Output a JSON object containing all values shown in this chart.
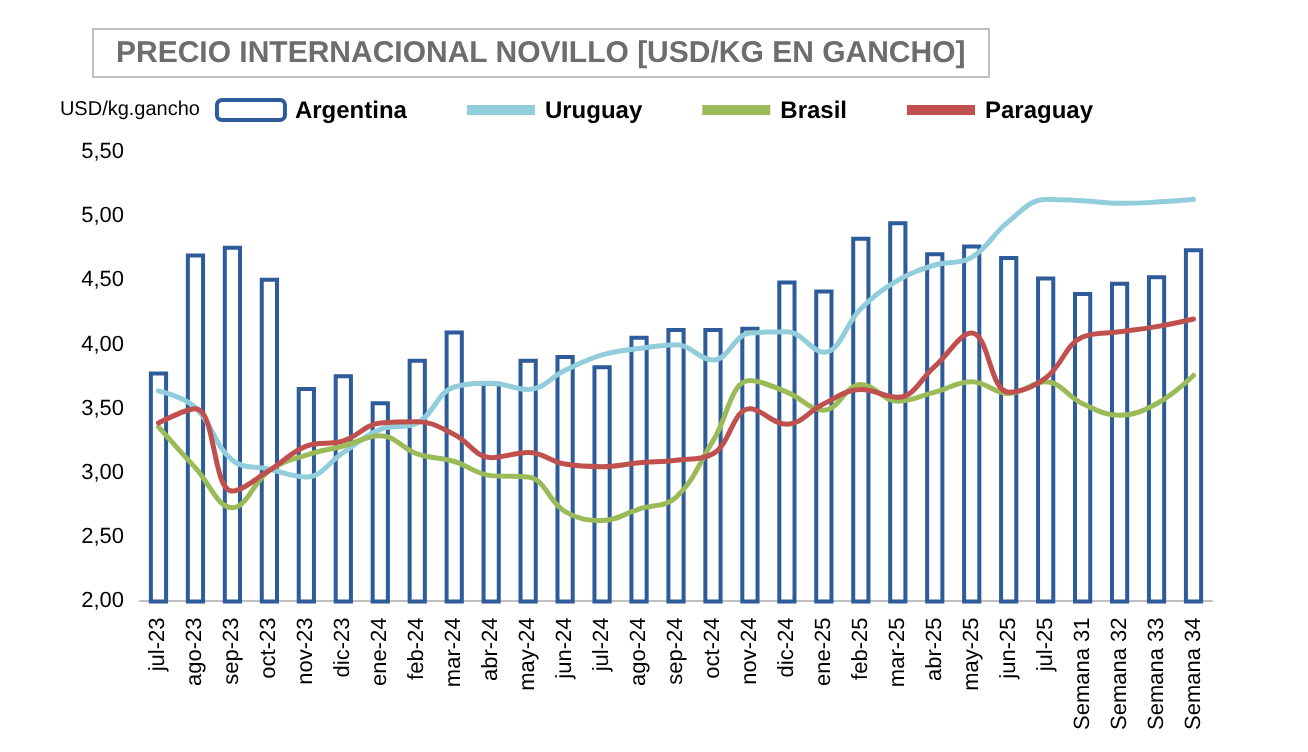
{
  "chart_data": {
    "type": "bar",
    "title": "PRECIO INTERNACIONAL NOVILLO [USD/KG EN GANCHO]",
    "ylabel": "USD/kg.gancho",
    "categories": [
      "jul-23",
      "ago-23",
      "sep-23",
      "oct-23",
      "nov-23",
      "dic-23",
      "ene-24",
      "feb-24",
      "mar-24",
      "abr-24",
      "may-24",
      "jun-24",
      "jul-24",
      "ago-24",
      "sep-24",
      "oct-24",
      "nov-24",
      "dic-24",
      "ene-25",
      "feb-25",
      "mar-25",
      "abr-25",
      "may-25",
      "jun-25",
      "jul-25",
      "Semana 31",
      "Semana 32",
      "Semana 33",
      "Semana 34"
    ],
    "series": [
      {
        "name": "Argentina",
        "color": "#2e5b9a",
        "values": [
          3.79,
          4.71,
          4.77,
          4.52,
          3.67,
          3.77,
          3.56,
          3.89,
          4.11,
          3.71,
          3.89,
          3.92,
          3.84,
          4.07,
          4.13,
          4.13,
          4.14,
          4.5,
          4.43,
          4.84,
          4.96,
          4.72,
          4.78,
          4.69,
          4.53,
          4.41,
          4.49,
          4.54,
          4.75
        ]
      },
      {
        "name": "Uruguay",
        "type": "line",
        "color": "#92cddc",
        "values": [
          3.64,
          3.51,
          3.1,
          3.03,
          2.97,
          3.16,
          3.34,
          3.39,
          3.67,
          3.7,
          3.65,
          3.8,
          3.92,
          3.97,
          4.0,
          3.88,
          4.09,
          4.1,
          3.94,
          4.28,
          4.5,
          4.62,
          4.68,
          4.96,
          5.13,
          5.12,
          5.1,
          5.11,
          5.13
        ]
      },
      {
        "name": "Brasil",
        "type": "line",
        "color": "#9bbb59",
        "values": [
          3.36,
          3.04,
          2.73,
          3.02,
          3.14,
          3.21,
          3.29,
          3.15,
          3.09,
          2.98,
          2.97,
          2.7,
          2.63,
          2.72,
          2.81,
          3.25,
          3.72,
          3.63,
          3.49,
          3.69,
          3.56,
          3.63,
          3.71,
          3.62,
          3.71,
          3.54,
          3.45,
          3.54,
          3.76
        ]
      },
      {
        "name": "Paraguay",
        "type": "line",
        "color": "#c0504d",
        "values": [
          3.39,
          3.5,
          2.86,
          3.02,
          3.21,
          3.25,
          3.39,
          3.4,
          3.3,
          3.12,
          3.16,
          3.07,
          3.05,
          3.08,
          3.1,
          3.15,
          3.5,
          3.38,
          3.54,
          3.65,
          3.59,
          3.83,
          4.09,
          3.63,
          3.74,
          4.06,
          4.1,
          4.14,
          4.2
        ]
      }
    ],
    "ylim": [
      2,
      5.5
    ],
    "yticks": [
      {
        "value": 2,
        "label": "2,00"
      },
      {
        "value": 2.5,
        "label": "2,50"
      },
      {
        "value": 3,
        "label": "3,00"
      },
      {
        "value": 3.5,
        "label": "3,50"
      },
      {
        "value": 4,
        "label": "4,00"
      },
      {
        "value": 4.5,
        "label": "4,50"
      },
      {
        "value": 5,
        "label": "5,00"
      },
      {
        "value": 5.5,
        "label": "5,50"
      }
    ],
    "legend": "top",
    "grid": false,
    "marker": "none",
    "line_style": "solid"
  }
}
